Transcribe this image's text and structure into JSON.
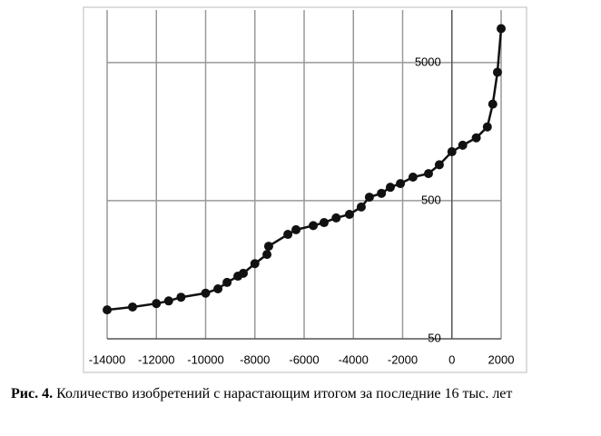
{
  "chart_data": {
    "type": "line",
    "x": [
      -14000,
      -12968,
      -12000,
      -11500,
      -11000,
      -10000,
      -9500,
      -9130,
      -8690,
      -8470,
      -8000,
      -7510,
      -7440,
      -6660,
      -6330,
      -5630,
      -5190,
      -4700,
      -4160,
      -3680,
      -3350,
      -2860,
      -2500,
      -2090,
      -1580,
      -950,
      -510,
      0,
      440,
      990,
      1440,
      1660,
      1850,
      2000
    ],
    "series": [
      {
        "color": "#111111",
        "values": [
          81,
          85,
          90,
          94,
          100,
          107,
          115,
          128,
          142,
          149,
          175,
          204,
          234,
          285,
          308,
          330,
          347,
          375,
          398,
          450,
          530,
          565,
          625,
          665,
          740,
          785,
          910,
          1130,
          1260,
          1425,
          1710,
          2500,
          4250,
          8800
        ]
      }
    ],
    "xlim": [
      -14000,
      2000
    ],
    "xticks": [
      -14000,
      -12000,
      -10000,
      -8000,
      -6000,
      -4000,
      -2000,
      0,
      2000
    ],
    "ylim": [
      50,
      12000
    ],
    "yticks": [
      50,
      500,
      5000
    ],
    "ylog": true,
    "grid": true,
    "caption_label": "Рис. 4.",
    "caption": "Количество изобретений с нарастающим итогом за последние 16 тыс. лет"
  }
}
